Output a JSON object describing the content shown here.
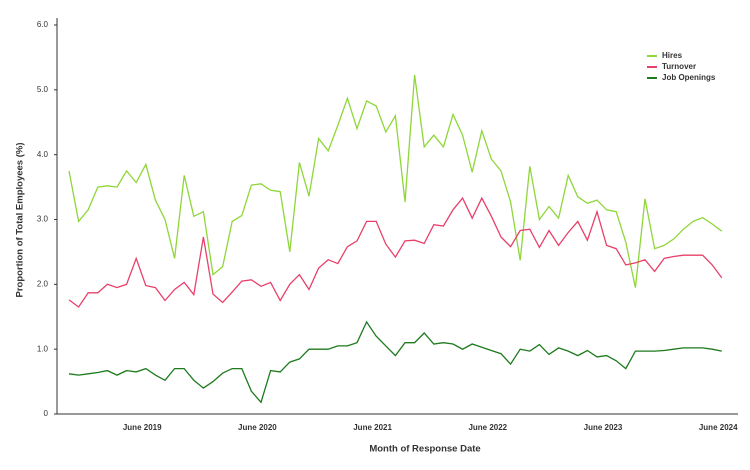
{
  "chart_data": {
    "type": "line",
    "x_label": "Month of Response Date",
    "y_label": "Proportion of Total Employees (%)",
    "categories": [
      null,
      null,
      null,
      null,
      null,
      null,
      null,
      "June 2019",
      null,
      null,
      null,
      null,
      null,
      null,
      null,
      null,
      null,
      null,
      null,
      "June 2020",
      null,
      null,
      null,
      null,
      null,
      null,
      null,
      null,
      null,
      null,
      null,
      "June 2021",
      null,
      null,
      null,
      null,
      null,
      null,
      null,
      null,
      null,
      null,
      null,
      "June 2022",
      null,
      null,
      null,
      null,
      null,
      null,
      null,
      null,
      null,
      null,
      null,
      "June 2023",
      null,
      null,
      null,
      null,
      null,
      null,
      null,
      null,
      null,
      null,
      null,
      "June 2024",
      null
    ],
    "series": [
      {
        "name": "Hires",
        "color": "#8fd639",
        "values": [
          3.75,
          2.97,
          3.15,
          3.5,
          3.52,
          3.5,
          3.75,
          3.57,
          3.85,
          3.3,
          3.0,
          2.4,
          3.68,
          3.05,
          3.12,
          2.15,
          2.27,
          2.97,
          3.06,
          3.53,
          3.55,
          3.45,
          3.43,
          2.5,
          3.88,
          3.36,
          4.25,
          4.06,
          4.45,
          4.87,
          4.4,
          4.83,
          4.75,
          4.35,
          4.6,
          3.27,
          5.23,
          4.12,
          4.3,
          4.12,
          4.62,
          4.3,
          3.73,
          4.37,
          3.93,
          3.75,
          3.27,
          2.37,
          3.82,
          3.0,
          3.2,
          3.02,
          3.68,
          3.35,
          3.25,
          3.3,
          3.15,
          3.12,
          2.65,
          1.95,
          3.32,
          2.55,
          2.6,
          2.7,
          2.85,
          2.97,
          3.03,
          2.93,
          2.82
        ]
      },
      {
        "name": "Turnover",
        "color": "#e8406a",
        "values": [
          1.76,
          1.65,
          1.87,
          1.87,
          2.0,
          1.95,
          2.0,
          2.4,
          1.98,
          1.95,
          1.75,
          1.92,
          2.03,
          1.84,
          2.73,
          1.85,
          1.72,
          1.88,
          2.05,
          2.07,
          1.97,
          2.03,
          1.75,
          2.0,
          2.15,
          1.92,
          2.25,
          2.38,
          2.32,
          2.58,
          2.67,
          2.97,
          2.97,
          2.62,
          2.42,
          2.67,
          2.68,
          2.63,
          2.92,
          2.9,
          3.15,
          3.33,
          3.02,
          3.33,
          3.05,
          2.73,
          2.58,
          2.83,
          2.85,
          2.57,
          2.83,
          2.6,
          2.8,
          2.97,
          2.68,
          3.12,
          2.6,
          2.55,
          2.3,
          2.33,
          2.38,
          2.2,
          2.4,
          2.43,
          2.45,
          2.45,
          2.45,
          2.3,
          2.1
        ]
      },
      {
        "name": "Job Openings",
        "color": "#1d7a1d",
        "values": [
          0.62,
          0.6,
          0.62,
          0.64,
          0.67,
          0.6,
          0.67,
          0.65,
          0.7,
          0.6,
          0.52,
          0.7,
          0.7,
          0.52,
          0.4,
          0.5,
          0.63,
          0.7,
          0.7,
          0.35,
          0.18,
          0.67,
          0.65,
          0.8,
          0.85,
          1.0,
          1.0,
          1.0,
          1.05,
          1.05,
          1.1,
          1.42,
          1.2,
          1.05,
          0.9,
          1.1,
          1.1,
          1.25,
          1.08,
          1.1,
          1.08,
          1.0,
          1.08,
          1.03,
          0.98,
          0.93,
          0.77,
          1.0,
          0.97,
          1.07,
          0.92,
          1.02,
          0.97,
          0.9,
          0.98,
          0.88,
          0.9,
          0.82,
          0.7,
          0.97,
          0.97,
          0.97,
          0.98,
          1.0,
          1.02,
          1.02,
          1.02,
          1.0,
          0.97
        ]
      }
    ],
    "ylim": [
      0,
      6
    ],
    "yticks": [
      0,
      {
        "value": 1,
        "label": "1.0"
      },
      {
        "value": 2,
        "label": "2.0"
      },
      {
        "value": 3,
        "label": "3.0"
      },
      {
        "value": 4,
        "label": "4.0"
      },
      {
        "value": 5,
        "label": "5.0"
      },
      {
        "value": 6,
        "label": "6.0"
      }
    ],
    "legend": "upper right"
  }
}
